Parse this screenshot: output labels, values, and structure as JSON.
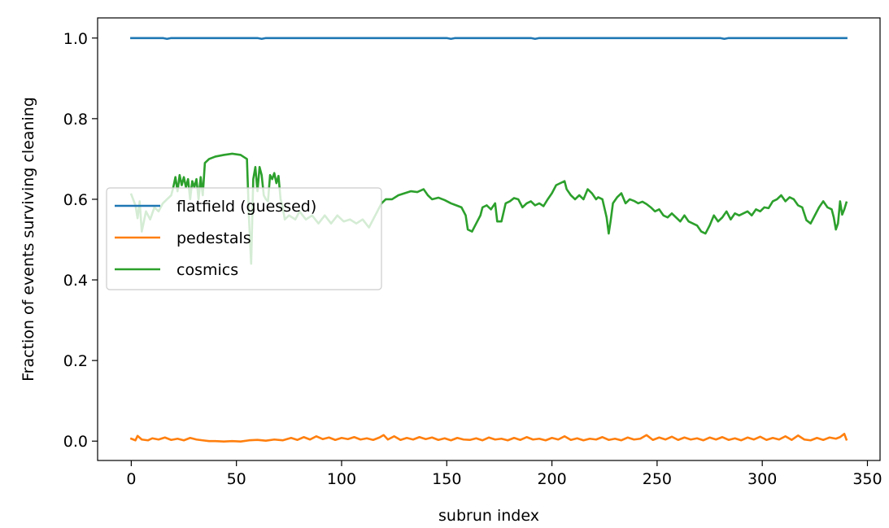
{
  "chart_data": {
    "type": "line",
    "title": "",
    "xlabel": "subrun index",
    "ylabel": "Fraction of events surviving cleaning",
    "xlim": [
      -16,
      356
    ],
    "ylim": [
      -0.048,
      1.05
    ],
    "xticks": [
      0,
      50,
      100,
      150,
      200,
      250,
      300,
      350
    ],
    "xtick_labels": [
      "0",
      "50",
      "100",
      "150",
      "200",
      "250",
      "300",
      "350"
    ],
    "yticks": [
      0.0,
      0.2,
      0.4,
      0.6,
      0.8,
      1.0
    ],
    "ytick_labels": [
      "0.0",
      "0.2",
      "0.4",
      "0.6",
      "0.8",
      "1.0"
    ],
    "grid": false,
    "legend_position": "center-left",
    "series": [
      {
        "name": "flatfield (guessed)",
        "color": "#1f77b4",
        "points": [
          [
            0,
            1.0
          ],
          [
            15,
            1.0
          ],
          [
            17,
            0.998
          ],
          [
            19,
            1.0
          ],
          [
            60,
            1.0
          ],
          [
            62,
            0.998
          ],
          [
            64,
            1.0
          ],
          [
            150,
            1.0
          ],
          [
            152,
            0.998
          ],
          [
            154,
            1.0
          ],
          [
            190,
            1.0
          ],
          [
            192,
            0.998
          ],
          [
            194,
            1.0
          ],
          [
            280,
            1.0
          ],
          [
            282,
            0.998
          ],
          [
            284,
            1.0
          ],
          [
            340,
            1.0
          ]
        ]
      },
      {
        "name": "pedestals",
        "color": "#ff7f0e",
        "points": [
          [
            0,
            0.006
          ],
          [
            2,
            0.002
          ],
          [
            3,
            0.013
          ],
          [
            5,
            0.004
          ],
          [
            8,
            0.002
          ],
          [
            10,
            0.007
          ],
          [
            13,
            0.004
          ],
          [
            16,
            0.009
          ],
          [
            19,
            0.003
          ],
          [
            22,
            0.006
          ],
          [
            25,
            0.002
          ],
          [
            28,
            0.008
          ],
          [
            31,
            0.004
          ],
          [
            34,
            0.002
          ],
          [
            37,
            0.0
          ],
          [
            40,
            0.0
          ],
          [
            44,
            -0.001
          ],
          [
            48,
            0.0
          ],
          [
            52,
            -0.001
          ],
          [
            56,
            0.002
          ],
          [
            60,
            0.003
          ],
          [
            64,
            0.001
          ],
          [
            68,
            0.004
          ],
          [
            72,
            0.002
          ],
          [
            76,
            0.008
          ],
          [
            79,
            0.003
          ],
          [
            82,
            0.01
          ],
          [
            85,
            0.004
          ],
          [
            88,
            0.012
          ],
          [
            91,
            0.005
          ],
          [
            94,
            0.009
          ],
          [
            97,
            0.003
          ],
          [
            100,
            0.008
          ],
          [
            103,
            0.005
          ],
          [
            106,
            0.01
          ],
          [
            109,
            0.004
          ],
          [
            112,
            0.007
          ],
          [
            115,
            0.003
          ],
          [
            118,
            0.009
          ],
          [
            120,
            0.015
          ],
          [
            122,
            0.004
          ],
          [
            125,
            0.012
          ],
          [
            128,
            0.003
          ],
          [
            131,
            0.008
          ],
          [
            134,
            0.004
          ],
          [
            137,
            0.01
          ],
          [
            140,
            0.005
          ],
          [
            143,
            0.009
          ],
          [
            146,
            0.003
          ],
          [
            149,
            0.007
          ],
          [
            152,
            0.002
          ],
          [
            155,
            0.008
          ],
          [
            158,
            0.004
          ],
          [
            161,
            0.003
          ],
          [
            164,
            0.007
          ],
          [
            167,
            0.002
          ],
          [
            170,
            0.009
          ],
          [
            173,
            0.004
          ],
          [
            176,
            0.006
          ],
          [
            179,
            0.002
          ],
          [
            182,
            0.008
          ],
          [
            185,
            0.003
          ],
          [
            188,
            0.01
          ],
          [
            191,
            0.004
          ],
          [
            194,
            0.006
          ],
          [
            197,
            0.002
          ],
          [
            200,
            0.008
          ],
          [
            203,
            0.004
          ],
          [
            206,
            0.012
          ],
          [
            209,
            0.003
          ],
          [
            212,
            0.007
          ],
          [
            215,
            0.002
          ],
          [
            218,
            0.006
          ],
          [
            221,
            0.004
          ],
          [
            224,
            0.01
          ],
          [
            227,
            0.003
          ],
          [
            230,
            0.006
          ],
          [
            233,
            0.002
          ],
          [
            236,
            0.009
          ],
          [
            239,
            0.004
          ],
          [
            242,
            0.006
          ],
          [
            245,
            0.015
          ],
          [
            248,
            0.003
          ],
          [
            251,
            0.009
          ],
          [
            254,
            0.004
          ],
          [
            257,
            0.011
          ],
          [
            260,
            0.003
          ],
          [
            263,
            0.009
          ],
          [
            266,
            0.004
          ],
          [
            269,
            0.007
          ],
          [
            272,
            0.002
          ],
          [
            275,
            0.009
          ],
          [
            278,
            0.004
          ],
          [
            281,
            0.01
          ],
          [
            284,
            0.003
          ],
          [
            287,
            0.007
          ],
          [
            290,
            0.002
          ],
          [
            293,
            0.009
          ],
          [
            296,
            0.004
          ],
          [
            299,
            0.011
          ],
          [
            302,
            0.003
          ],
          [
            305,
            0.008
          ],
          [
            308,
            0.004
          ],
          [
            311,
            0.012
          ],
          [
            314,
            0.003
          ],
          [
            317,
            0.014
          ],
          [
            320,
            0.004
          ],
          [
            323,
            0.002
          ],
          [
            326,
            0.008
          ],
          [
            329,
            0.003
          ],
          [
            332,
            0.009
          ],
          [
            335,
            0.006
          ],
          [
            337,
            0.01
          ],
          [
            339,
            0.018
          ],
          [
            340,
            0.004
          ]
        ]
      },
      {
        "name": "cosmics",
        "color": "#2ca02c",
        "points": [
          [
            0,
            0.612
          ],
          [
            2,
            0.585
          ],
          [
            3,
            0.553
          ],
          [
            4,
            0.595
          ],
          [
            5,
            0.52
          ],
          [
            7,
            0.57
          ],
          [
            9,
            0.55
          ],
          [
            11,
            0.58
          ],
          [
            13,
            0.57
          ],
          [
            15,
            0.59
          ],
          [
            17,
            0.6
          ],
          [
            19,
            0.61
          ],
          [
            20,
            0.63
          ],
          [
            21,
            0.655
          ],
          [
            22,
            0.62
          ],
          [
            23,
            0.66
          ],
          [
            24,
            0.635
          ],
          [
            25,
            0.655
          ],
          [
            26,
            0.63
          ],
          [
            27,
            0.65
          ],
          [
            28,
            0.6
          ],
          [
            29,
            0.645
          ],
          [
            30,
            0.63
          ],
          [
            31,
            0.65
          ],
          [
            32,
            0.6
          ],
          [
            33,
            0.655
          ],
          [
            34,
            0.61
          ],
          [
            35,
            0.69
          ],
          [
            37,
            0.7
          ],
          [
            40,
            0.706
          ],
          [
            44,
            0.71
          ],
          [
            48,
            0.713
          ],
          [
            52,
            0.71
          ],
          [
            55,
            0.7
          ],
          [
            56,
            0.55
          ],
          [
            57,
            0.44
          ],
          [
            58,
            0.65
          ],
          [
            59,
            0.68
          ],
          [
            60,
            0.62
          ],
          [
            61,
            0.68
          ],
          [
            62,
            0.66
          ],
          [
            63,
            0.61
          ],
          [
            64,
            0.6
          ],
          [
            65,
            0.595
          ],
          [
            66,
            0.66
          ],
          [
            67,
            0.65
          ],
          [
            68,
            0.665
          ],
          [
            69,
            0.64
          ],
          [
            70,
            0.658
          ],
          [
            71,
            0.6
          ],
          [
            72,
            0.58
          ],
          [
            73,
            0.55
          ],
          [
            75,
            0.56
          ],
          [
            78,
            0.55
          ],
          [
            80,
            0.57
          ],
          [
            83,
            0.55
          ],
          [
            86,
            0.56
          ],
          [
            89,
            0.54
          ],
          [
            92,
            0.56
          ],
          [
            95,
            0.54
          ],
          [
            98,
            0.56
          ],
          [
            101,
            0.545
          ],
          [
            104,
            0.55
          ],
          [
            107,
            0.54
          ],
          [
            110,
            0.55
          ],
          [
            113,
            0.53
          ],
          [
            115,
            0.55
          ],
          [
            117,
            0.57
          ],
          [
            119,
            0.59
          ],
          [
            121,
            0.6
          ],
          [
            124,
            0.6
          ],
          [
            127,
            0.61
          ],
          [
            130,
            0.615
          ],
          [
            133,
            0.62
          ],
          [
            136,
            0.618
          ],
          [
            139,
            0.625
          ],
          [
            141,
            0.61
          ],
          [
            143,
            0.6
          ],
          [
            146,
            0.604
          ],
          [
            149,
            0.598
          ],
          [
            152,
            0.59
          ],
          [
            155,
            0.584
          ],
          [
            157,
            0.58
          ],
          [
            159,
            0.56
          ],
          [
            160,
            0.525
          ],
          [
            162,
            0.52
          ],
          [
            164,
            0.54
          ],
          [
            166,
            0.56
          ],
          [
            167,
            0.58
          ],
          [
            169,
            0.585
          ],
          [
            171,
            0.575
          ],
          [
            173,
            0.59
          ],
          [
            174,
            0.545
          ],
          [
            176,
            0.545
          ],
          [
            178,
            0.59
          ],
          [
            180,
            0.595
          ],
          [
            182,
            0.603
          ],
          [
            184,
            0.6
          ],
          [
            186,
            0.58
          ],
          [
            188,
            0.59
          ],
          [
            190,
            0.595
          ],
          [
            192,
            0.585
          ],
          [
            194,
            0.59
          ],
          [
            196,
            0.583
          ],
          [
            198,
            0.6
          ],
          [
            200,
            0.615
          ],
          [
            202,
            0.635
          ],
          [
            204,
            0.64
          ],
          [
            206,
            0.645
          ],
          [
            207,
            0.625
          ],
          [
            209,
            0.61
          ],
          [
            211,
            0.6
          ],
          [
            213,
            0.61
          ],
          [
            215,
            0.6
          ],
          [
            217,
            0.625
          ],
          [
            219,
            0.615
          ],
          [
            221,
            0.6
          ],
          [
            222,
            0.605
          ],
          [
            224,
            0.6
          ],
          [
            226,
            0.555
          ],
          [
            227,
            0.515
          ],
          [
            228,
            0.55
          ],
          [
            229,
            0.59
          ],
          [
            231,
            0.605
          ],
          [
            233,
            0.615
          ],
          [
            235,
            0.59
          ],
          [
            237,
            0.6
          ],
          [
            239,
            0.596
          ],
          [
            241,
            0.59
          ],
          [
            243,
            0.594
          ],
          [
            245,
            0.588
          ],
          [
            247,
            0.58
          ],
          [
            249,
            0.57
          ],
          [
            251,
            0.575
          ],
          [
            253,
            0.56
          ],
          [
            255,
            0.555
          ],
          [
            257,
            0.565
          ],
          [
            259,
            0.555
          ],
          [
            261,
            0.545
          ],
          [
            263,
            0.56
          ],
          [
            265,
            0.545
          ],
          [
            267,
            0.54
          ],
          [
            269,
            0.535
          ],
          [
            271,
            0.52
          ],
          [
            273,
            0.515
          ],
          [
            275,
            0.535
          ],
          [
            277,
            0.56
          ],
          [
            279,
            0.545
          ],
          [
            281,
            0.555
          ],
          [
            283,
            0.57
          ],
          [
            285,
            0.55
          ],
          [
            287,
            0.565
          ],
          [
            289,
            0.56
          ],
          [
            291,
            0.565
          ],
          [
            293,
            0.57
          ],
          [
            295,
            0.56
          ],
          [
            297,
            0.575
          ],
          [
            299,
            0.57
          ],
          [
            301,
            0.58
          ],
          [
            303,
            0.578
          ],
          [
            305,
            0.595
          ],
          [
            307,
            0.6
          ],
          [
            309,
            0.61
          ],
          [
            311,
            0.595
          ],
          [
            313,
            0.605
          ],
          [
            315,
            0.6
          ],
          [
            317,
            0.585
          ],
          [
            319,
            0.58
          ],
          [
            321,
            0.548
          ],
          [
            323,
            0.54
          ],
          [
            325,
            0.56
          ],
          [
            327,
            0.58
          ],
          [
            329,
            0.595
          ],
          [
            331,
            0.58
          ],
          [
            333,
            0.575
          ],
          [
            334,
            0.555
          ],
          [
            335,
            0.525
          ],
          [
            336,
            0.54
          ],
          [
            337,
            0.595
          ],
          [
            338,
            0.562
          ],
          [
            339,
            0.575
          ],
          [
            340,
            0.592
          ]
        ]
      }
    ]
  }
}
